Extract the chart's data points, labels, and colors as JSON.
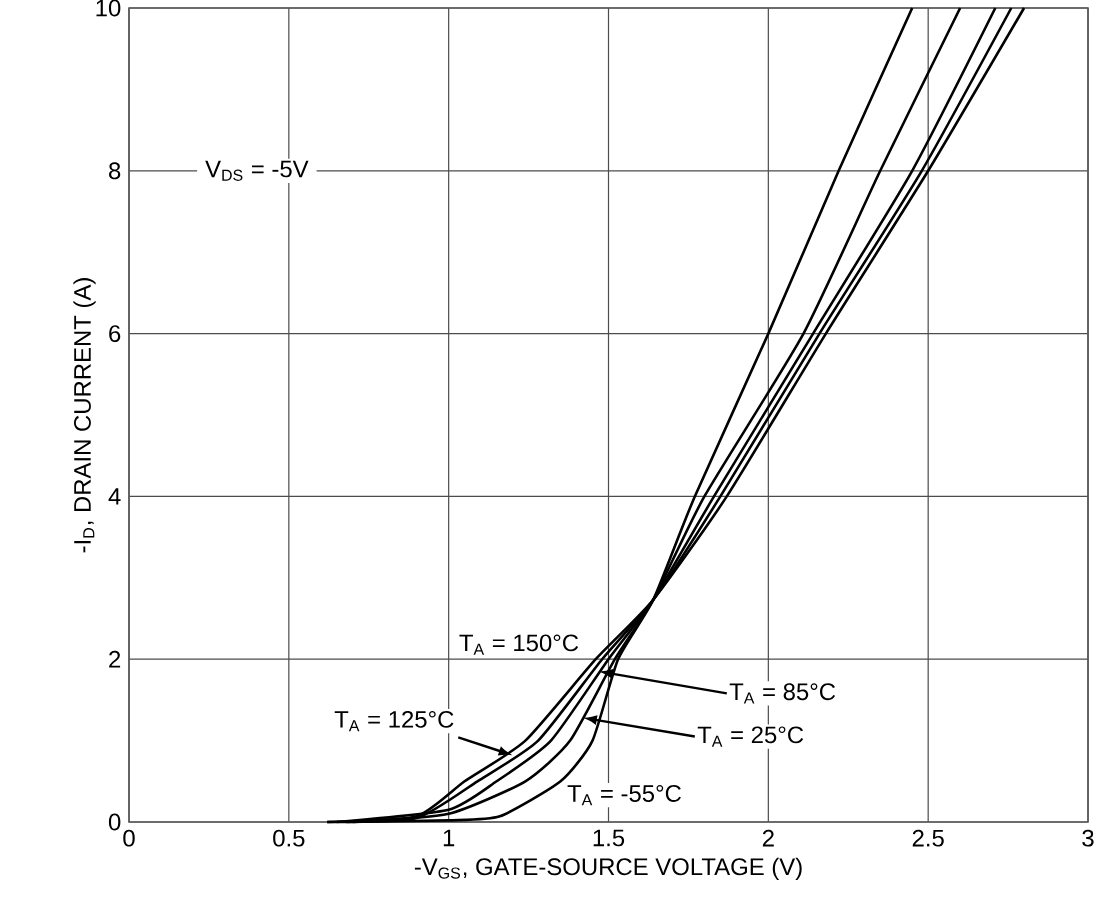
{
  "chart_data": {
    "type": "line",
    "xlabel": "-V$_{GS}$, GATE-SOURCE VOLTAGE (V)",
    "ylabel": "-I$_{D}$, DRAIN CURRENT (A)",
    "xlim": [
      0,
      3
    ],
    "ylim": [
      0,
      10
    ],
    "xticks": [
      0,
      0.5,
      1,
      1.5,
      2,
      2.5,
      3
    ],
    "yticks": [
      0,
      2,
      4,
      6,
      8,
      10
    ],
    "grid": true,
    "marker": "none",
    "line_style": "solid",
    "annotations": [
      "V$_{DS}$ = -5V",
      {
        "text": "T$_{A}$ = 150°C",
        "x": 1.46,
        "y": 2
      },
      {
        "text": "T$_{A}$ = 125°C",
        "x": 1.2,
        "y": 0.82
      },
      {
        "text": "T$_{A}$ = 85°C",
        "x": 1.47,
        "y": 1.85
      },
      {
        "text": "T$_{A}$ = 25°C",
        "x": 1.42,
        "y": 1.28
      },
      {
        "text": "T$_{A}$ = -55°C",
        "x": 1.45,
        "y": 1
      }
    ],
    "series": [
      {
        "color": "#000000",
        "x": [
          0.62,
          0.9,
          1.05,
          1.24,
          1.46,
          1.64,
          1.87,
          2.18,
          2.5,
          2.8
        ],
        "values": [
          0,
          0.07,
          0.5,
          1,
          2,
          2.73,
          4,
          6,
          8,
          10
        ]
      },
      {
        "color": "#000000",
        "x": [
          0.62,
          0.9,
          1.09,
          1.28,
          1.48,
          1.64,
          1.85,
          2.16,
          2.48,
          2.76
        ],
        "values": [
          0,
          0.05,
          0.5,
          1,
          2,
          2.73,
          4,
          6,
          8,
          10
        ]
      },
      {
        "color": "#000000",
        "x": [
          0.65,
          1.0,
          1.15,
          1.32,
          1.5,
          1.64,
          1.83,
          2.14,
          2.45,
          2.71
        ],
        "values": [
          0,
          0.15,
          0.5,
          1,
          2,
          2.73,
          4,
          6,
          8,
          10
        ]
      },
      {
        "color": "#000000",
        "x": [
          0.7,
          1.0,
          1.24,
          1.38,
          1.52,
          1.64,
          1.8,
          2.11,
          2.35,
          2.6
        ],
        "values": [
          0,
          0.1,
          0.5,
          1,
          2,
          2.73,
          4,
          6,
          8,
          10
        ]
      },
      {
        "color": "#000000",
        "x": [
          0.68,
          1.0,
          1.16,
          1.35,
          1.45,
          1.53,
          1.64,
          1.77,
          2.0,
          2.22,
          2.45
        ],
        "values": [
          0,
          0.02,
          0.07,
          0.5,
          1,
          2,
          2.73,
          4,
          6,
          8,
          10
        ]
      }
    ]
  }
}
